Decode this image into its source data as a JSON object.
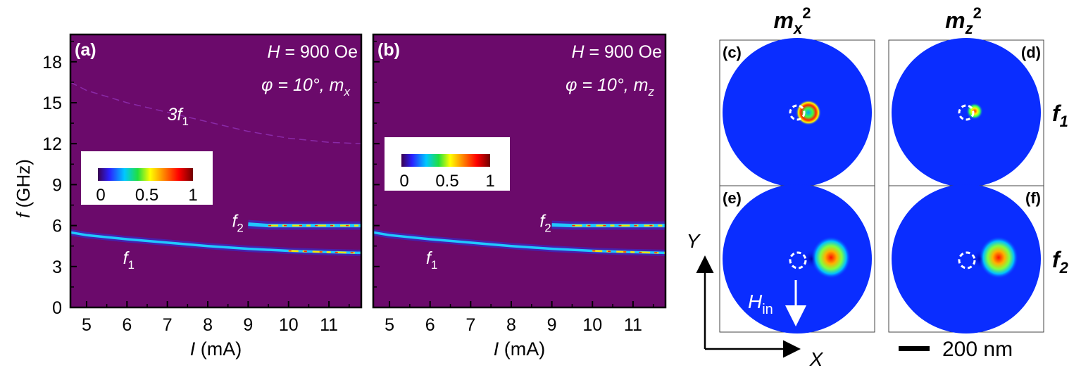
{
  "colors": {
    "plot_background": "#6b0a6b",
    "map_background": "#0a2dff",
    "panel_border": "#000000",
    "label_white": "#ffffff"
  },
  "chart_data": [
    {
      "panel": "(a)",
      "type": "heatmap",
      "title": "",
      "xlabel": "I (mA)",
      "ylabel": "f (GHz)",
      "xlim": [
        4.6,
        11.8
      ],
      "ylim": [
        0,
        20
      ],
      "xticks": [
        5,
        6,
        7,
        8,
        9,
        10,
        11
      ],
      "yticks": [
        0,
        3,
        6,
        9,
        12,
        15,
        18
      ],
      "annotations": {
        "field": "H = 900 Oe",
        "angle": "φ = 10°,  m",
        "component_sub": "x"
      },
      "colorbar": {
        "min": 0,
        "max": 1,
        "ticks": [
          "0",
          "0.5",
          "1"
        ]
      },
      "series": [
        {
          "name": "f1",
          "x": [
            4.6,
            5,
            6,
            7,
            8,
            9,
            10,
            11,
            11.8
          ],
          "y": [
            5.5,
            5.3,
            5.0,
            4.75,
            4.5,
            4.3,
            4.15,
            4.05,
            4.0
          ]
        },
        {
          "name": "f2",
          "x": [
            9.0,
            9.5,
            10,
            11,
            11.8
          ],
          "y": [
            6.1,
            6.0,
            6.0,
            6.0,
            6.0
          ]
        },
        {
          "name": "3f1",
          "x": [
            4.6,
            5,
            6,
            7,
            8,
            9,
            10,
            11,
            11.8
          ],
          "y": [
            16.5,
            15.9,
            15.0,
            14.3,
            13.6,
            12.9,
            12.4,
            12.1,
            12.0
          ]
        }
      ],
      "labels": [
        {
          "text": "f",
          "sub": "1",
          "x": 5.9,
          "y": 3.2
        },
        {
          "text": "f",
          "sub": "2",
          "x": 8.6,
          "y": 5.9
        },
        {
          "text": "3f",
          "sub": "1",
          "x": 7.0,
          "y": 13.7
        }
      ]
    },
    {
      "panel": "(b)",
      "type": "heatmap",
      "title": "",
      "xlabel": "I (mA)",
      "ylabel": "",
      "xlim": [
        4.6,
        11.8
      ],
      "ylim": [
        0,
        20
      ],
      "xticks": [
        5,
        6,
        7,
        8,
        9,
        10,
        11
      ],
      "yticks": [
        0,
        3,
        6,
        9,
        12,
        15,
        18
      ],
      "annotations": {
        "field": "H = 900 Oe",
        "angle": "φ = 10°,  m",
        "component_sub": "z"
      },
      "colorbar": {
        "min": 0,
        "max": 1,
        "ticks": [
          "0",
          "0.5",
          "1"
        ]
      },
      "series": [
        {
          "name": "f1",
          "x": [
            4.6,
            5,
            6,
            7,
            8,
            9,
            10,
            11,
            11.8
          ],
          "y": [
            5.5,
            5.3,
            5.0,
            4.75,
            4.5,
            4.3,
            4.15,
            4.05,
            4.0
          ]
        },
        {
          "name": "f2",
          "x": [
            9.0,
            9.5,
            10,
            11,
            11.8
          ],
          "y": [
            6.05,
            6.0,
            6.0,
            6.0,
            6.0
          ]
        }
      ],
      "labels": [
        {
          "text": "f",
          "sub": "1",
          "x": 5.9,
          "y": 3.2
        },
        {
          "text": "f",
          "sub": "2",
          "x": 8.7,
          "y": 5.9
        }
      ]
    }
  ],
  "maps": {
    "column_headers": [
      {
        "text": "m",
        "sub": "x",
        "sup": "2"
      },
      {
        "text": "m",
        "sub": "z",
        "sup": "2"
      }
    ],
    "row_labels": [
      {
        "text": "f",
        "sub": "1"
      },
      {
        "text": "f",
        "sub": "2"
      }
    ],
    "panels": [
      "(c)",
      "(d)",
      "(e)",
      "(f)"
    ],
    "axes": {
      "y_label": "Y",
      "x_label": "X",
      "field_label": "H",
      "field_sub": "in"
    },
    "scale_bar": "200 nm"
  }
}
